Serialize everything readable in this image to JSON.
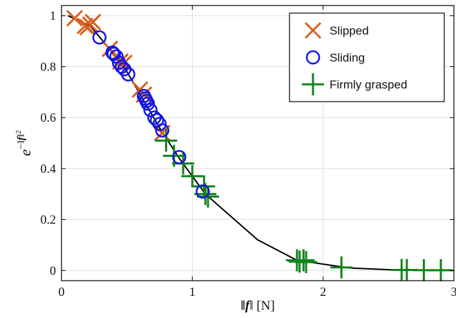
{
  "chart_data": {
    "type": "scatter",
    "title": "",
    "xlabel": "||f|| [N]",
    "ylabel": "e^{-||f||^2}",
    "xlim": [
      0,
      3
    ],
    "ylim": [
      -0.04,
      1.04
    ],
    "xticks": [
      0,
      1,
      2,
      3
    ],
    "xtick_labels": [
      "0",
      "1",
      "2",
      "3"
    ],
    "yticks": [
      0,
      0.2,
      0.4,
      0.6,
      0.8,
      1
    ],
    "ytick_labels": [
      "0",
      "0.2",
      "0.4",
      "0.6",
      "0.8",
      "1"
    ],
    "grid": true,
    "legend_position": "top-right",
    "curve": {
      "x": [
        0.05,
        0.22,
        0.35,
        0.5,
        0.75,
        0.9,
        1.1,
        1.5,
        1.8,
        2.2,
        2.6,
        3.0
      ],
      "y": [
        1.0,
        0.96,
        0.88,
        0.78,
        0.56,
        0.44,
        0.3,
        0.12,
        0.04,
        0.01,
        0.001,
        0.0
      ],
      "color": "#000000"
    },
    "series": [
      {
        "name": "Slipped",
        "marker": "x",
        "color": "#d95f1e",
        "x": [
          0.1,
          0.18,
          0.2,
          0.22,
          0.24,
          0.37,
          0.45,
          0.48,
          0.6,
          0.63,
          0.77
        ],
        "y": [
          0.99,
          0.96,
          0.955,
          0.965,
          0.975,
          0.87,
          0.82,
          0.815,
          0.71,
          0.69,
          0.54
        ]
      },
      {
        "name": "Sliding",
        "marker": "circle",
        "color": "#1515e6",
        "x": [
          0.29,
          0.39,
          0.4,
          0.42,
          0.44,
          0.46,
          0.48,
          0.51,
          0.63,
          0.64,
          0.65,
          0.66,
          0.68,
          0.71,
          0.73,
          0.75,
          0.77,
          0.9,
          1.08
        ],
        "y": [
          0.915,
          0.855,
          0.85,
          0.84,
          0.815,
          0.8,
          0.79,
          0.77,
          0.685,
          0.675,
          0.665,
          0.655,
          0.63,
          0.6,
          0.59,
          0.575,
          0.55,
          0.445,
          0.31
        ]
      },
      {
        "name": "Firmly grasped",
        "marker": "plus",
        "color": "#12821c",
        "x": [
          0.8,
          0.86,
          0.93,
          1.0,
          1.09,
          1.1,
          1.12,
          1.8,
          1.82,
          1.85,
          1.87,
          2.14,
          2.6,
          2.64,
          2.77,
          2.9
        ],
        "y": [
          0.51,
          0.45,
          0.42,
          0.37,
          0.33,
          0.3,
          0.29,
          0.04,
          0.035,
          0.04,
          0.033,
          0.012,
          0.002,
          0.002,
          0.001,
          0.001
        ]
      }
    ]
  }
}
